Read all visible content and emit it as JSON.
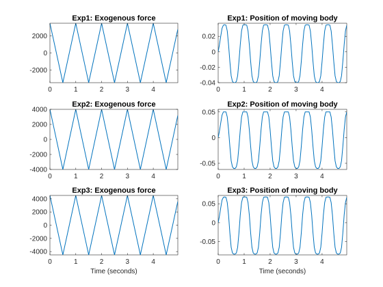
{
  "colors": {
    "series": "#0072bd",
    "axes": "#262626",
    "background": "#ffffff"
  },
  "chart_data": [
    {
      "type": "line",
      "title": "Exp1: Exogenous force",
      "xlabel": "",
      "ylabel": "",
      "xlim": [
        0,
        4.95
      ],
      "ylim": [
        -3500,
        3500
      ],
      "xticks": [
        0,
        1,
        2,
        3,
        4
      ],
      "xticklabels": [
        "0",
        "1",
        "2",
        "3",
        "4"
      ],
      "yticks": [
        -2000,
        0,
        2000
      ],
      "yticklabels": [
        "-2000",
        "0",
        "2000"
      ],
      "series": [
        {
          "x": [
            0,
            0.5,
            1,
            1.5,
            2,
            2.5,
            3,
            3.5,
            4,
            4.5,
            4.95
          ],
          "y": [
            3500,
            -3500,
            3500,
            -3500,
            3500,
            -3500,
            3500,
            -3500,
            3500,
            -3500,
            2800
          ]
        }
      ]
    },
    {
      "type": "line",
      "title": "Exp1: Position of moving body",
      "xlabel": "",
      "ylabel": "",
      "xlim": [
        0,
        4.95
      ],
      "ylim": [
        -0.04,
        0.037
      ],
      "xticks": [
        0,
        1,
        2,
        3,
        4
      ],
      "xticklabels": [
        "0",
        "1",
        "2",
        "3",
        "4"
      ],
      "yticks": [
        -0.04,
        -0.02,
        0,
        0.02
      ],
      "yticklabels": [
        "-0.04",
        "-0.02",
        "0",
        "0.02"
      ],
      "series": [
        {
          "x": [
            0,
            0.05,
            0.1,
            0.15,
            0.2,
            0.25,
            0.3,
            0.35,
            0.4,
            0.45,
            0.5,
            0.55,
            0.6,
            0.65,
            0.7,
            0.75,
            0.8,
            0.85,
            0.9,
            0.95,
            1,
            1.05,
            1.1,
            1.15,
            1.2,
            1.25,
            1.3,
            1.35,
            1.4,
            1.45,
            1.5,
            1.55,
            1.6,
            1.65,
            1.7,
            1.75,
            1.8,
            1.85,
            1.9,
            1.95,
            2,
            2.05,
            2.1,
            2.15,
            2.2,
            2.25,
            2.3,
            2.35,
            2.4,
            2.45,
            2.5,
            2.55,
            2.6,
            2.65,
            2.7,
            2.75,
            2.8,
            2.85,
            2.9,
            2.95,
            3,
            3.05,
            3.1,
            3.15,
            3.2,
            3.25,
            3.3,
            3.35,
            3.4,
            3.45,
            3.5,
            3.55,
            3.6,
            3.65,
            3.7,
            3.75,
            3.8,
            3.85,
            3.9,
            3.95,
            4,
            4.05,
            4.1,
            4.15,
            4.2,
            4.25,
            4.3,
            4.35,
            4.4,
            4.45,
            4.5,
            4.55,
            4.6,
            4.65,
            4.7,
            4.75,
            4.8,
            4.85,
            4.9,
            4.95
          ],
          "y": [
            0,
            0.0095,
            0.0205,
            0.0305,
            0.0345,
            0.035,
            0.0345,
            0.027,
            0.009,
            -0.0125,
            -0.031,
            -0.0385,
            -0.04,
            -0.04,
            -0.0385,
            -0.031,
            -0.0125,
            0.009,
            0.027,
            0.0345,
            0.035,
            0.035,
            0.0345,
            0.027,
            0.009,
            -0.0125,
            -0.031,
            -0.0385,
            -0.04,
            -0.04,
            -0.0385,
            -0.031,
            -0.0125,
            0.009,
            0.027,
            0.0345,
            0.035,
            0.035,
            0.0345,
            0.027,
            0.009,
            -0.0125,
            -0.031,
            -0.0385,
            -0.04,
            -0.04,
            -0.0385,
            -0.031,
            -0.0125,
            0.009,
            0.027,
            0.0345,
            0.035,
            0.035,
            0.0345,
            0.027,
            0.009,
            -0.0125,
            -0.031,
            -0.0385,
            -0.04,
            -0.04,
            -0.0385,
            -0.031,
            -0.0125,
            0.009,
            0.027,
            0.0345,
            0.035,
            0.035,
            0.0345,
            0.027,
            0.009,
            -0.0125,
            -0.031,
            -0.0385,
            -0.04,
            -0.04,
            -0.0385,
            -0.031,
            -0.0125,
            0.009,
            0.027,
            0.0345,
            0.035,
            0.035,
            0.0345,
            0.027,
            0.009,
            -0.0125,
            -0.031,
            -0.0385,
            -0.04,
            -0.04,
            -0.0385,
            -0.031,
            -0.0125,
            0.009,
            0.027,
            0.0345
          ]
        }
      ]
    },
    {
      "type": "line",
      "title": "Exp2: Exogenous force",
      "xlabel": "",
      "ylabel": "",
      "xlim": [
        0,
        4.95
      ],
      "ylim": [
        -4000,
        4000
      ],
      "xticks": [
        0,
        1,
        2,
        3,
        4
      ],
      "xticklabels": [
        "0",
        "1",
        "2",
        "3",
        "4"
      ],
      "yticks": [
        -4000,
        -2000,
        0,
        2000,
        4000
      ],
      "yticklabels": [
        "-4000",
        "-2000",
        "0",
        "2000",
        "4000"
      ],
      "series": [
        {
          "x": [
            0,
            0.5,
            1,
            1.5,
            2,
            2.5,
            3,
            3.5,
            4,
            4.5,
            4.95
          ],
          "y": [
            4000,
            -4000,
            4000,
            -4000,
            4000,
            -4000,
            4000,
            -4000,
            4000,
            -4000,
            3200
          ]
        }
      ]
    },
    {
      "type": "line",
      "title": "Exp2: Position of moving body",
      "xlabel": "",
      "ylabel": "",
      "xlim": [
        0,
        4.95
      ],
      "ylim": [
        -0.062,
        0.055
      ],
      "xticks": [
        0,
        1,
        2,
        3,
        4
      ],
      "xticklabels": [
        "0",
        "1",
        "2",
        "3",
        "4"
      ],
      "yticks": [
        -0.05,
        0,
        0.05
      ],
      "yticklabels": [
        "-0.05",
        "0",
        "0.05"
      ],
      "series": [
        {
          "x": [
            0,
            0.05,
            0.1,
            0.15,
            0.2,
            0.25,
            0.3,
            0.35,
            0.4,
            0.45,
            0.5,
            0.55,
            0.6,
            0.65,
            0.7,
            0.75,
            0.8,
            0.85,
            0.9,
            0.95,
            1,
            1.05,
            1.1,
            1.15,
            1.2,
            1.25,
            1.3,
            1.35,
            1.4,
            1.45,
            1.5,
            1.55,
            1.6,
            1.65,
            1.7,
            1.75,
            1.8,
            1.85,
            1.9,
            1.95,
            2,
            2.05,
            2.1,
            2.15,
            2.2,
            2.25,
            2.3,
            2.35,
            2.4,
            2.45,
            2.5,
            2.55,
            2.6,
            2.65,
            2.7,
            2.75,
            2.8,
            2.85,
            2.9,
            2.95,
            3,
            3.05,
            3.1,
            3.15,
            3.2,
            3.25,
            3.3,
            3.35,
            3.4,
            3.45,
            3.5,
            3.55,
            3.6,
            3.65,
            3.7,
            3.75,
            3.8,
            3.85,
            3.9,
            3.95,
            4,
            4.05,
            4.1,
            4.15,
            4.2,
            4.25,
            4.3,
            4.35,
            4.4,
            4.45,
            4.5,
            4.55,
            4.6,
            4.65,
            4.7,
            4.75,
            4.8,
            4.85,
            4.9,
            4.95
          ],
          "y": [
            0,
            0.013,
            0.029,
            0.044,
            0.05,
            0.05,
            0.05,
            0.04,
            0.015,
            -0.017,
            -0.045,
            -0.057,
            -0.06,
            -0.06,
            -0.057,
            -0.045,
            -0.017,
            0.015,
            0.04,
            0.05,
            0.05,
            0.05,
            0.05,
            0.04,
            0.015,
            -0.017,
            -0.045,
            -0.057,
            -0.06,
            -0.06,
            -0.057,
            -0.045,
            -0.017,
            0.015,
            0.04,
            0.05,
            0.05,
            0.05,
            0.05,
            0.04,
            0.015,
            -0.017,
            -0.045,
            -0.057,
            -0.06,
            -0.06,
            -0.057,
            -0.045,
            -0.017,
            0.015,
            0.04,
            0.05,
            0.05,
            0.05,
            0.05,
            0.04,
            0.015,
            -0.017,
            -0.045,
            -0.057,
            -0.06,
            -0.06,
            -0.057,
            -0.045,
            -0.017,
            0.015,
            0.04,
            0.05,
            0.05,
            0.05,
            0.05,
            0.04,
            0.015,
            -0.017,
            -0.045,
            -0.057,
            -0.06,
            -0.06,
            -0.057,
            -0.045,
            -0.017,
            0.015,
            0.04,
            0.05,
            0.05,
            0.05,
            0.05,
            0.04,
            0.015,
            -0.017,
            -0.045,
            -0.057,
            -0.06,
            -0.06,
            -0.057,
            -0.045,
            -0.017,
            0.015,
            0.04,
            0.05
          ]
        }
      ]
    },
    {
      "type": "line",
      "title": "Exp3: Exogenous force",
      "xlabel": "Time (seconds)",
      "ylabel": "",
      "xlim": [
        0,
        4.95
      ],
      "ylim": [
        -4500,
        4500
      ],
      "xticks": [
        0,
        1,
        2,
        3,
        4
      ],
      "xticklabels": [
        "0",
        "1",
        "2",
        "3",
        "4"
      ],
      "yticks": [
        -4000,
        -2000,
        0,
        2000,
        4000
      ],
      "yticklabels": [
        "-4000",
        "-2000",
        "0",
        "2000",
        "4000"
      ],
      "series": [
        {
          "x": [
            0,
            0.5,
            1,
            1.5,
            2,
            2.5,
            3,
            3.5,
            4,
            4.5,
            4.95
          ],
          "y": [
            4500,
            -4500,
            4500,
            -4500,
            4500,
            -4500,
            4500,
            -4500,
            4500,
            -4500,
            3600
          ]
        }
      ]
    },
    {
      "type": "line",
      "title": "Exp3: Position of moving body",
      "xlabel": "Time (seconds)",
      "ylabel": "",
      "xlim": [
        0,
        4.95
      ],
      "ylim": [
        -0.085,
        0.072
      ],
      "xticks": [
        0,
        1,
        2,
        3,
        4
      ],
      "xticklabels": [
        "0",
        "1",
        "2",
        "3",
        "4"
      ],
      "yticks": [
        -0.05,
        0,
        0.05
      ],
      "yticklabels": [
        "-0.05",
        "0",
        "0.05"
      ],
      "series": [
        {
          "x": [
            0,
            0.05,
            0.1,
            0.15,
            0.2,
            0.25,
            0.3,
            0.35,
            0.4,
            0.45,
            0.5,
            0.55,
            0.6,
            0.65,
            0.7,
            0.75,
            0.8,
            0.85,
            0.9,
            0.95,
            1,
            1.05,
            1.1,
            1.15,
            1.2,
            1.25,
            1.3,
            1.35,
            1.4,
            1.45,
            1.5,
            1.55,
            1.6,
            1.65,
            1.7,
            1.75,
            1.8,
            1.85,
            1.9,
            1.95,
            2,
            2.05,
            2.1,
            2.15,
            2.2,
            2.25,
            2.3,
            2.35,
            2.4,
            2.45,
            2.5,
            2.55,
            2.6,
            2.65,
            2.7,
            2.75,
            2.8,
            2.85,
            2.9,
            2.95,
            3,
            3.05,
            3.1,
            3.15,
            3.2,
            3.25,
            3.3,
            3.35,
            3.4,
            3.45,
            3.5,
            3.55,
            3.6,
            3.65,
            3.7,
            3.75,
            3.8,
            3.85,
            3.9,
            3.95,
            4,
            4.05,
            4.1,
            4.15,
            4.2,
            4.25,
            4.3,
            4.35,
            4.4,
            4.45,
            4.5,
            4.55,
            4.6,
            4.65,
            4.7,
            4.75,
            4.8,
            4.85,
            4.9,
            4.95
          ],
          "y": [
            0,
            0.018,
            0.04,
            0.06,
            0.067,
            0.068,
            0.067,
            0.053,
            0.02,
            -0.027,
            -0.065,
            -0.08,
            -0.083,
            -0.083,
            -0.08,
            -0.065,
            -0.027,
            0.02,
            0.053,
            0.067,
            0.068,
            0.068,
            0.067,
            0.053,
            0.02,
            -0.027,
            -0.065,
            -0.08,
            -0.083,
            -0.083,
            -0.08,
            -0.065,
            -0.027,
            0.02,
            0.053,
            0.067,
            0.068,
            0.068,
            0.067,
            0.053,
            0.02,
            -0.027,
            -0.065,
            -0.08,
            -0.083,
            -0.083,
            -0.08,
            -0.065,
            -0.027,
            0.02,
            0.053,
            0.067,
            0.068,
            0.068,
            0.067,
            0.053,
            0.02,
            -0.027,
            -0.065,
            -0.08,
            -0.083,
            -0.083,
            -0.08,
            -0.065,
            -0.027,
            0.02,
            0.053,
            0.067,
            0.068,
            0.068,
            0.067,
            0.053,
            0.02,
            -0.027,
            -0.065,
            -0.08,
            -0.083,
            -0.083,
            -0.08,
            -0.065,
            -0.027,
            0.02,
            0.053,
            0.067,
            0.068,
            0.068,
            0.067,
            0.053,
            0.02,
            -0.027,
            -0.065,
            -0.08,
            -0.083,
            -0.083,
            -0.08,
            -0.065,
            -0.027,
            0.02,
            0.053,
            0.067
          ]
        }
      ]
    }
  ]
}
